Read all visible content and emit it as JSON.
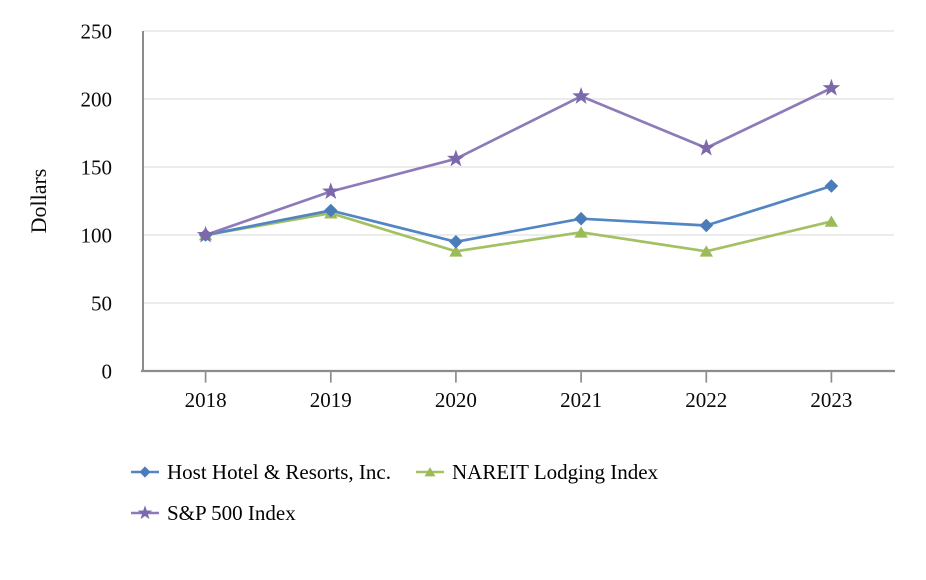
{
  "chart_data": {
    "type": "line",
    "title": "",
    "xlabel": "",
    "ylabel": "Dollars",
    "categories": [
      "2018",
      "2019",
      "2020",
      "2021",
      "2022",
      "2023"
    ],
    "series": [
      {
        "name": "Host Hotel & Resorts, Inc.",
        "marker": "diamond",
        "color": "#4a7cba",
        "line_color": "#5385c3",
        "values": [
          100,
          118,
          95,
          112,
          107,
          136
        ]
      },
      {
        "name": "NAREIT Lodging Index",
        "marker": "triangle",
        "color": "#9bbb59",
        "line_color": "#a2c162",
        "values": [
          100,
          116,
          88,
          102,
          88,
          110
        ]
      },
      {
        "name": "S&P 500 Index",
        "marker": "star",
        "color": "#7d68ab",
        "line_color": "#8d7bb9",
        "values": [
          100,
          132,
          156,
          202,
          164,
          208
        ]
      }
    ],
    "ylim": [
      0,
      250
    ],
    "yticks": [
      0,
      50,
      100,
      150,
      200,
      250
    ],
    "grid": true,
    "legend_position": "bottom-left",
    "colors": {
      "axis": "#8c8c8c",
      "grid": "#e0e0e0",
      "tick": "#8c8c8c",
      "text": "#0a0a0a",
      "background": "#ffffff"
    }
  }
}
